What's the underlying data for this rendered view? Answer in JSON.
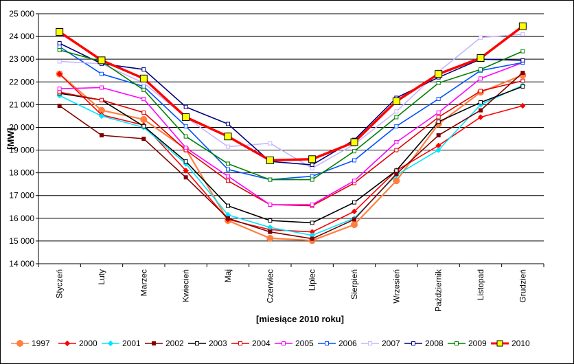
{
  "chart_data": {
    "type": "line",
    "xlabel": "[miesiące 2010 roku]",
    "ylabel": "[MW]",
    "ylim": [
      14000,
      25000
    ],
    "ytick_step": 1000,
    "ytick_labels": [
      "14 000",
      "15 000",
      "16 000",
      "17 000",
      "18 000",
      "19 000",
      "20 000",
      "21 000",
      "22 000",
      "23 000",
      "24 000",
      "25 000"
    ],
    "grid": "horizontal",
    "legend_position": "bottom",
    "categories": [
      "Styczeń",
      "Luty",
      "Marzec",
      "Kwiecień",
      "Maj",
      "Czerwiec",
      "Lipiec",
      "Sierpień",
      "Wrzesień",
      "Październik",
      "Listopad",
      "Grudzień"
    ],
    "series": [
      {
        "name": "1997",
        "color": "#ff8040",
        "marker": "circle",
        "values": [
          22350,
          20750,
          20350,
          19050,
          15900,
          15120,
          15020,
          15720,
          17650,
          20150,
          21550,
          22300
        ]
      },
      {
        "name": "2000",
        "color": "#ff0000",
        "marker": "diamond",
        "values": [
          22350,
          20550,
          20100,
          18100,
          15950,
          15500,
          15400,
          16300,
          18100,
          19200,
          20450,
          20950
        ]
      },
      {
        "name": "2001",
        "color": "#00e5ff",
        "marker": "diamond",
        "values": [
          21400,
          20500,
          20000,
          18400,
          16150,
          15600,
          15250,
          16000,
          17900,
          19000,
          21000,
          21850
        ]
      },
      {
        "name": "2002",
        "color": "#800000",
        "marker": "square",
        "values": [
          20950,
          19650,
          19500,
          17800,
          16000,
          15400,
          15100,
          15950,
          17950,
          19650,
          20750,
          22400
        ]
      },
      {
        "name": "2003",
        "color": "#000000",
        "marker": "square",
        "values": [
          21500,
          21200,
          20050,
          18500,
          16550,
          15900,
          15800,
          16700,
          18100,
          20250,
          21100,
          21800
        ]
      },
      {
        "name": "2004",
        "color": "#e00000",
        "marker": "square",
        "values": [
          21550,
          21200,
          20650,
          19000,
          17650,
          16600,
          16550,
          17550,
          19000,
          20450,
          21600,
          22050
        ]
      },
      {
        "name": "2005",
        "color": "#ff00ff",
        "marker": "square",
        "values": [
          21700,
          21750,
          21250,
          19100,
          17850,
          16600,
          16600,
          17650,
          19350,
          20650,
          22150,
          22850
        ]
      },
      {
        "name": "2006",
        "color": "#0050ff",
        "marker": "square",
        "values": [
          23550,
          22350,
          21800,
          20050,
          18150,
          17700,
          17850,
          18550,
          20050,
          21250,
          22500,
          22850
        ]
      },
      {
        "name": "2007",
        "color": "#c8b4ff",
        "marker": "square",
        "values": [
          22900,
          22800,
          21950,
          20450,
          19150,
          19300,
          18200,
          19250,
          20700,
          22450,
          23950,
          24100
        ]
      },
      {
        "name": "2008",
        "color": "#000080",
        "marker": "square",
        "values": [
          23700,
          22800,
          22550,
          20900,
          20150,
          18500,
          18350,
          19450,
          21300,
          22200,
          23000,
          22950
        ]
      },
      {
        "name": "2009",
        "color": "#008000",
        "marker": "square",
        "values": [
          23400,
          22900,
          21650,
          19600,
          18400,
          17700,
          17700,
          18950,
          20450,
          21950,
          22550,
          23350
        ]
      },
      {
        "name": "2010",
        "color": "#ff0000",
        "marker": "big-yellow-square",
        "values": [
          24200,
          22950,
          22150,
          20450,
          19600,
          18550,
          18600,
          19350,
          21150,
          22350,
          23050,
          24450
        ]
      }
    ]
  }
}
